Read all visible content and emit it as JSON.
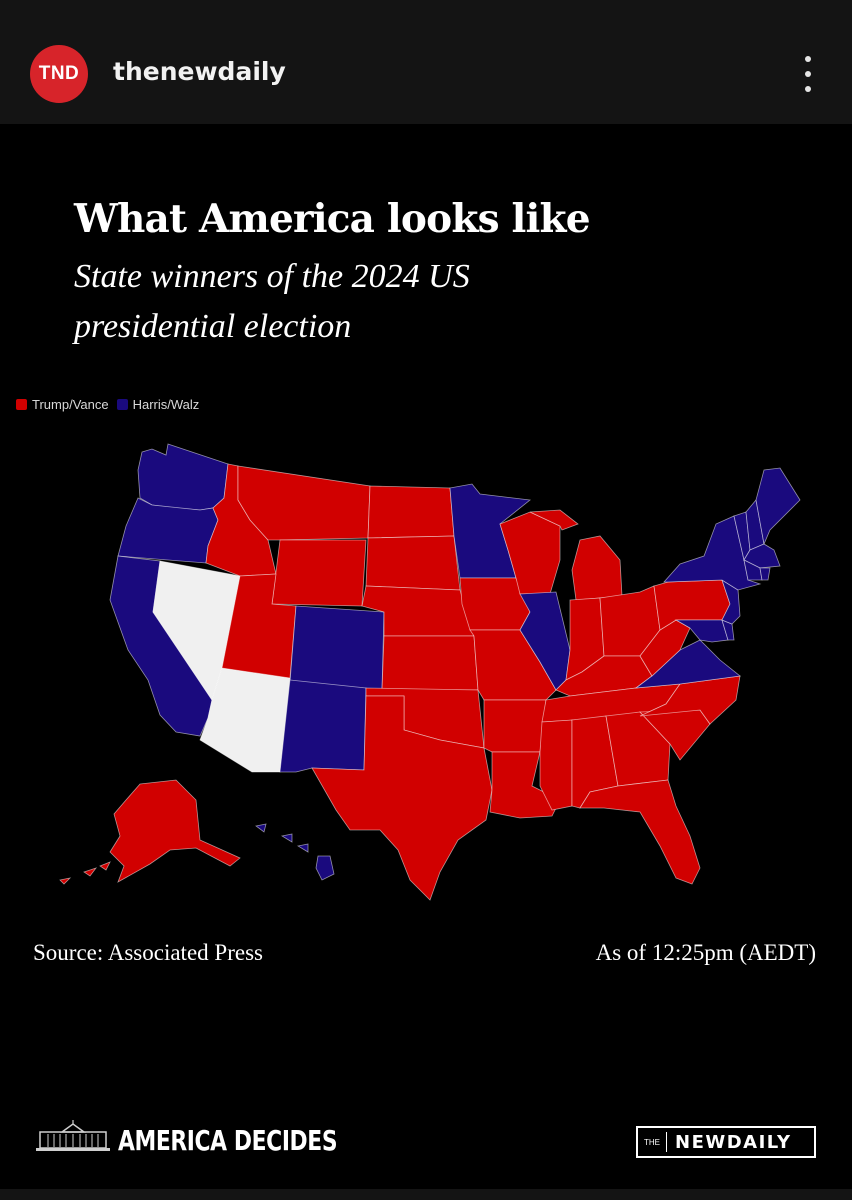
{
  "header": {
    "avatar_text": "TND",
    "account_name": "thenewdaily",
    "menu_icon": "more-vertical-icon"
  },
  "post": {
    "headline": "What America looks like",
    "subhead": "State winners of the 2024 US presidential election",
    "legend": [
      {
        "label": "Trump/Vance",
        "color": "#d10000"
      },
      {
        "label": "Harris/Walz",
        "color": "#1a0a7e"
      }
    ],
    "source": "Source: Associated Press",
    "as_of": "As of 12:25pm (AEDT)",
    "footer_brand": "AMERICA DECIDES",
    "footer_icon": "white-house-icon",
    "logo_the": "THE",
    "logo_name": "NEWDAILY"
  },
  "colors": {
    "republican": "#d10000",
    "democrat": "#1a0a7e",
    "undecided": "#f0f0f0",
    "background": "#000000",
    "avatar": "#d7242a"
  }
}
